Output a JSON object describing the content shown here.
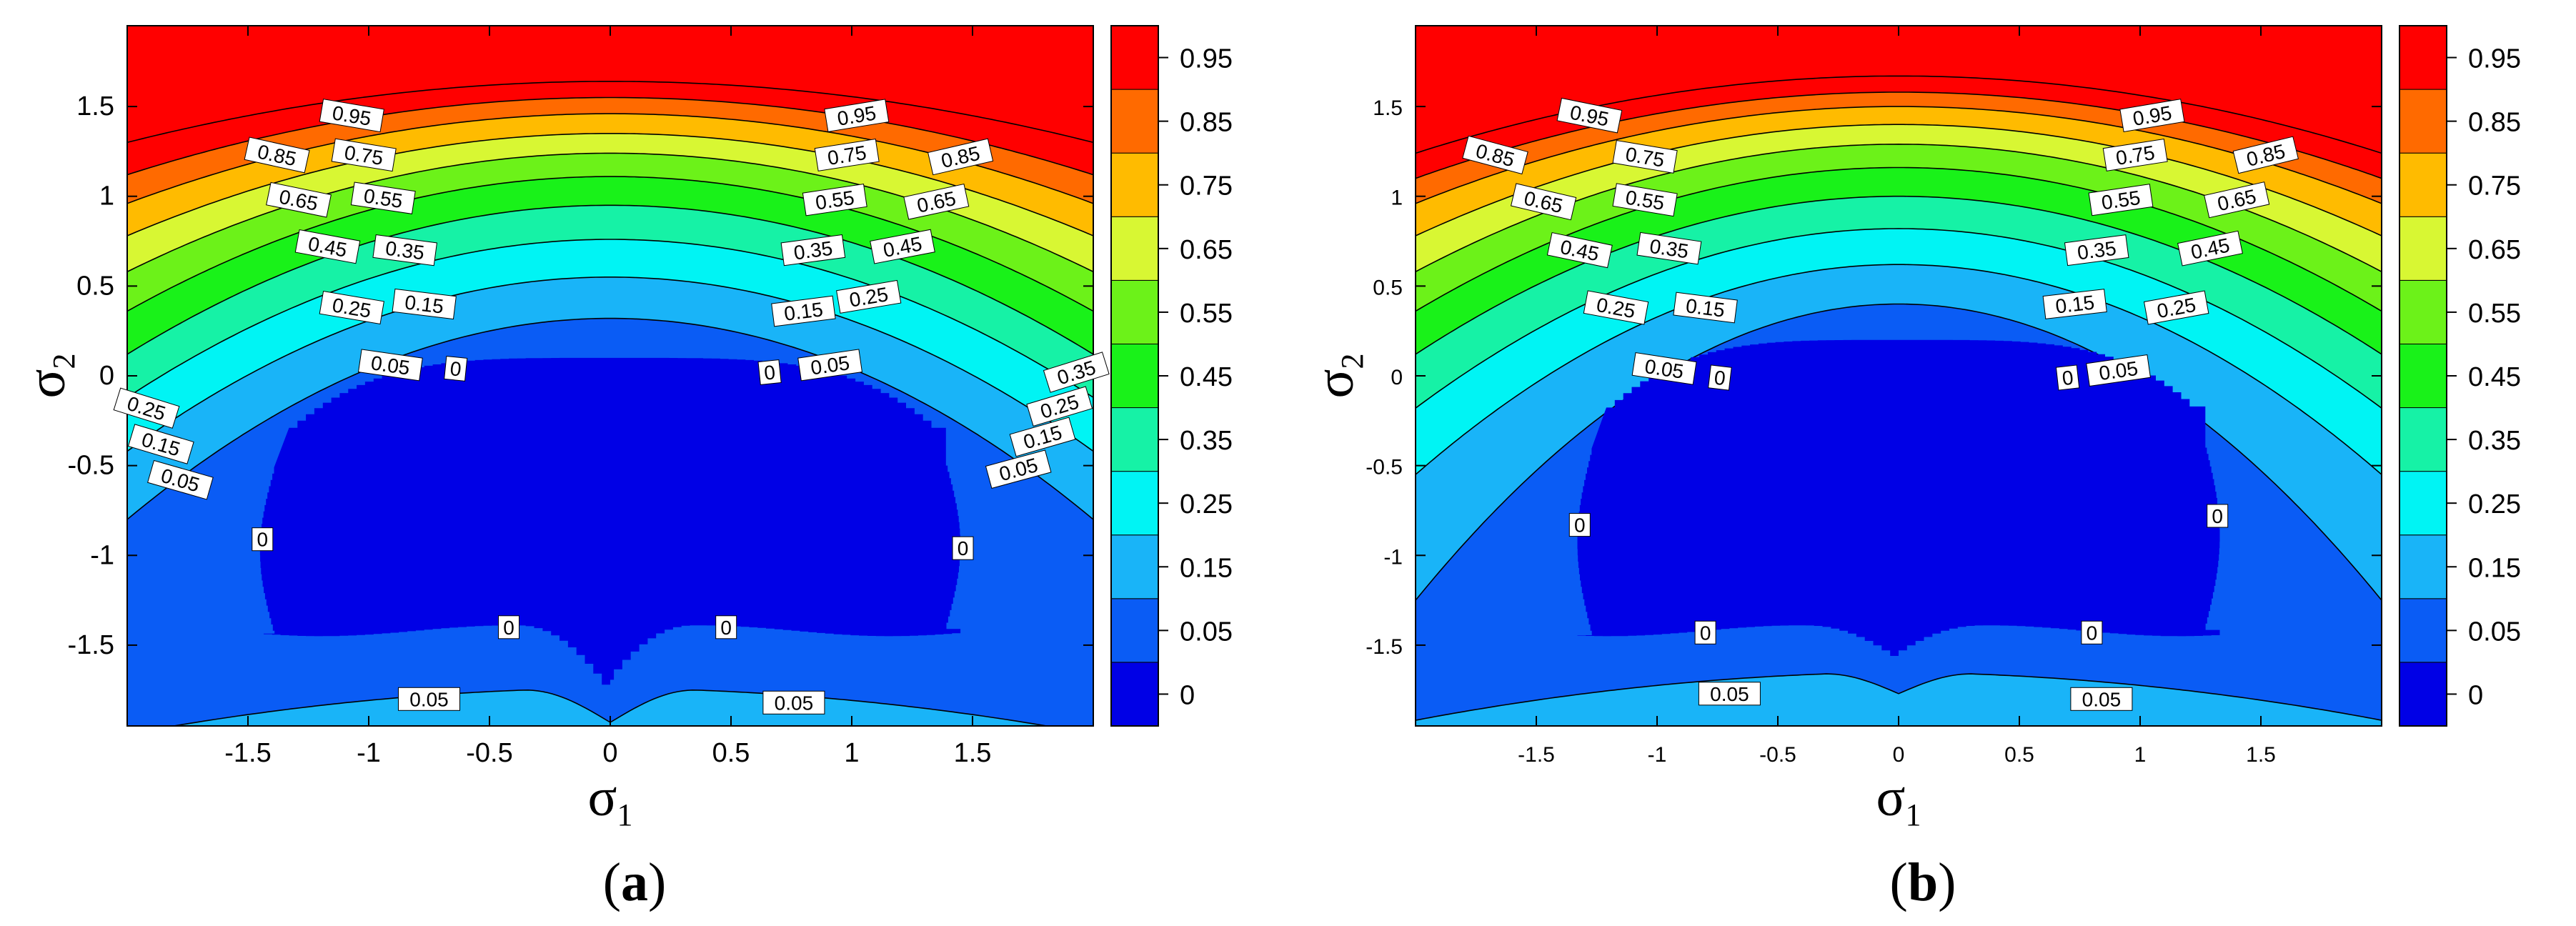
{
  "figure": {
    "panels": [
      {
        "id": "a",
        "caption_letter": "a"
      },
      {
        "id": "b",
        "caption_letter": "b"
      }
    ],
    "xlabel_symbol": "σ",
    "xlabel_sub": "1",
    "ylabel_symbol": "σ",
    "ylabel_sub": "2"
  },
  "chart_data": [
    {
      "type": "heatmap",
      "subtype": "filled-contour",
      "panel": "a",
      "xlabel": "σ1",
      "ylabel": "σ2",
      "xlim": [
        -2,
        2
      ],
      "ylim": [
        -1.95,
        1.95
      ],
      "x_ticks": [
        -1.5,
        -1,
        -0.5,
        0,
        0.5,
        1,
        1.5
      ],
      "x_tick_labels": [
        "-1.5",
        "-1",
        "-0.5",
        "0",
        "0.5",
        "1",
        "1.5"
      ],
      "y_ticks": [
        -1.5,
        -1,
        -0.5,
        0,
        0.5,
        1,
        1.5
      ],
      "y_tick_labels": [
        "-1.5",
        "-1",
        "-0.5",
        "0",
        "0.5",
        "1",
        "1.5"
      ],
      "colorbar": {
        "levels": [
          0,
          0.05,
          0.15,
          0.25,
          0.35,
          0.45,
          0.55,
          0.65,
          0.75,
          0.85,
          0.95
        ],
        "labels": [
          "0",
          "0.05",
          "0.15",
          "0.25",
          "0.35",
          "0.45",
          "0.55",
          "0.65",
          "0.75",
          "0.85",
          "0.95"
        ],
        "colors": [
          "#0000e6",
          "#0a5cf5",
          "#19b4f8",
          "#00f4f4",
          "#16f2a6",
          "#19f219",
          "#6cf219",
          "#d8f733",
          "#ffbb00",
          "#ff6a00",
          "#ff0000"
        ]
      },
      "contour_shape": {
        "boundaries": [
          {
            "level": 0.05,
            "center_y": 0.32,
            "edge_y": -0.8,
            "curvature": 2
          },
          {
            "level": 0.15,
            "center_y": 0.55,
            "edge_y": -0.42,
            "curvature": 2
          },
          {
            "level": 0.25,
            "center_y": 0.76,
            "edge_y": -0.12,
            "curvature": 2
          },
          {
            "level": 0.35,
            "center_y": 0.95,
            "edge_y": 0.12,
            "curvature": 2
          },
          {
            "level": 0.45,
            "center_y": 1.11,
            "edge_y": 0.36,
            "curvature": 2
          },
          {
            "level": 0.55,
            "center_y": 1.24,
            "edge_y": 0.58,
            "curvature": 2
          },
          {
            "level": 0.65,
            "center_y": 1.35,
            "edge_y": 0.78,
            "curvature": 2
          },
          {
            "level": 0.75,
            "center_y": 1.46,
            "edge_y": 0.96,
            "curvature": 2
          },
          {
            "level": 0.85,
            "center_y": 1.55,
            "edge_y": 1.12,
            "curvature": 2
          },
          {
            "level": 0.95,
            "center_y": 1.64,
            "edge_y": 1.3,
            "curvature": 2
          }
        ],
        "zero_region": {
          "x_left": -1.45,
          "x_right": 1.45,
          "y_top": 0.1,
          "y_bottom": -1.42,
          "notch_x": 0,
          "notch_y": -1.72
        },
        "bottom_band": {
          "level": 0.05,
          "peak_y": -1.75,
          "dip_y": -1.93,
          "peak_x": 0.35
        }
      },
      "contour_labels": [
        {
          "text": "0.95",
          "x": -1.07,
          "y": 1.45
        },
        {
          "text": "0.95",
          "x": 1.02,
          "y": 1.45
        },
        {
          "text": "0.85",
          "x": -1.38,
          "y": 1.23
        },
        {
          "text": "0.85",
          "x": 1.45,
          "y": 1.22
        },
        {
          "text": "0.75",
          "x": -1.02,
          "y": 1.23
        },
        {
          "text": "0.75",
          "x": 0.98,
          "y": 1.23
        },
        {
          "text": "0.65",
          "x": -1.29,
          "y": 0.98
        },
        {
          "text": "0.65",
          "x": 1.35,
          "y": 0.97
        },
        {
          "text": "0.55",
          "x": -0.94,
          "y": 0.99
        },
        {
          "text": "0.55",
          "x": 0.93,
          "y": 0.98
        },
        {
          "text": "0.45",
          "x": -1.17,
          "y": 0.72
        },
        {
          "text": "0.45",
          "x": 1.21,
          "y": 0.72
        },
        {
          "text": "0.35",
          "x": -0.85,
          "y": 0.7
        },
        {
          "text": "0.35",
          "x": 0.84,
          "y": 0.7
        },
        {
          "text": "0.25",
          "x": -1.07,
          "y": 0.38
        },
        {
          "text": "0.25",
          "x": 1.07,
          "y": 0.44
        },
        {
          "text": "0.15",
          "x": -0.77,
          "y": 0.4
        },
        {
          "text": "0.15",
          "x": 0.8,
          "y": 0.36
        },
        {
          "text": "0.05",
          "x": -0.91,
          "y": 0.06
        },
        {
          "text": "0.05",
          "x": 0.91,
          "y": 0.06
        },
        {
          "text": "0",
          "x": -0.64,
          "y": 0.04
        },
        {
          "text": "0",
          "x": 0.66,
          "y": 0.02
        },
        {
          "text": "0.35",
          "x": 1.93,
          "y": 0.02
        },
        {
          "text": "0.25",
          "x": 1.86,
          "y": -0.17
        },
        {
          "text": "0.15",
          "x": 1.79,
          "y": -0.34
        },
        {
          "text": "0.05",
          "x": 1.69,
          "y": -0.52
        },
        {
          "text": "0.25",
          "x": -1.92,
          "y": -0.18
        },
        {
          "text": "0.15",
          "x": -1.86,
          "y": -0.38
        },
        {
          "text": "0.05",
          "x": -1.78,
          "y": -0.58
        },
        {
          "text": "0",
          "x": -1.44,
          "y": -0.91
        },
        {
          "text": "0",
          "x": 1.46,
          "y": -0.96
        },
        {
          "text": "0",
          "x": -0.42,
          "y": -1.4
        },
        {
          "text": "0",
          "x": 0.48,
          "y": -1.4
        },
        {
          "text": "0.05",
          "x": -0.75,
          "y": -1.8
        },
        {
          "text": "0.05",
          "x": 0.76,
          "y": -1.82
        }
      ]
    },
    {
      "type": "heatmap",
      "subtype": "filled-contour",
      "panel": "b",
      "xlabel": "σ1",
      "ylabel": "σ2",
      "xlim": [
        -2,
        2
      ],
      "ylim": [
        -1.95,
        1.95
      ],
      "x_ticks": [
        -1.5,
        -1,
        -0.5,
        0,
        0.5,
        1,
        1.5
      ],
      "x_tick_labels": [
        "-1.5",
        "-1",
        "-0.5",
        "0",
        "0.5",
        "1",
        "1.5"
      ],
      "y_ticks": [
        -1.5,
        -1,
        -0.5,
        0,
        0.5,
        1,
        1.5
      ],
      "y_tick_labels": [
        "-1.5",
        "-1",
        "-0.5",
        "0",
        "0.5",
        "1",
        "1.5"
      ],
      "colorbar": {
        "levels": [
          0,
          0.05,
          0.15,
          0.25,
          0.35,
          0.45,
          0.55,
          0.65,
          0.75,
          0.85,
          0.95
        ],
        "labels": [
          "0",
          "0.05",
          "0.15",
          "0.25",
          "0.35",
          "0.45",
          "0.55",
          "0.65",
          "0.75",
          "0.85",
          "0.95"
        ],
        "colors": [
          "#0000e6",
          "#0a5cf5",
          "#19b4f8",
          "#00f4f4",
          "#16f2a6",
          "#19f219",
          "#6cf219",
          "#d8f733",
          "#ffbb00",
          "#ff6a00",
          "#ff0000"
        ]
      },
      "contour_shape": {
        "boundaries": [
          {
            "level": 0.05,
            "center_y": 0.4,
            "edge_y": -1.25,
            "curvature": 2
          },
          {
            "level": 0.15,
            "center_y": 0.62,
            "edge_y": -0.55,
            "curvature": 2
          },
          {
            "level": 0.25,
            "center_y": 0.82,
            "edge_y": -0.18,
            "curvature": 2
          },
          {
            "level": 0.35,
            "center_y": 1.0,
            "edge_y": 0.12,
            "curvature": 2
          },
          {
            "level": 0.45,
            "center_y": 1.16,
            "edge_y": 0.36,
            "curvature": 2
          },
          {
            "level": 0.55,
            "center_y": 1.29,
            "edge_y": 0.58,
            "curvature": 2
          },
          {
            "level": 0.65,
            "center_y": 1.4,
            "edge_y": 0.78,
            "curvature": 2
          },
          {
            "level": 0.75,
            "center_y": 1.5,
            "edge_y": 0.96,
            "curvature": 2
          },
          {
            "level": 0.85,
            "center_y": 1.58,
            "edge_y": 1.1,
            "curvature": 2
          },
          {
            "level": 0.95,
            "center_y": 1.67,
            "edge_y": 1.24,
            "curvature": 2
          }
        ],
        "zero_region": {
          "x_left": -1.33,
          "x_right": 1.33,
          "y_top": 0.2,
          "y_bottom": -1.42,
          "notch_x": 0,
          "notch_y": -1.56
        },
        "bottom_band": {
          "level": 0.05,
          "peak_y": -1.66,
          "dip_y": -1.77,
          "peak_x": 0.3
        }
      },
      "contour_labels": [
        {
          "text": "0.95",
          "x": -1.28,
          "y": 1.45
        },
        {
          "text": "0.95",
          "x": 1.05,
          "y": 1.45
        },
        {
          "text": "0.85",
          "x": -1.67,
          "y": 1.23
        },
        {
          "text": "0.85",
          "x": 1.52,
          "y": 1.23
        },
        {
          "text": "0.75",
          "x": -1.05,
          "y": 1.22
        },
        {
          "text": "0.75",
          "x": 0.98,
          "y": 1.23
        },
        {
          "text": "0.65",
          "x": -1.47,
          "y": 0.97
        },
        {
          "text": "0.65",
          "x": 1.4,
          "y": 0.98
        },
        {
          "text": "0.55",
          "x": -1.05,
          "y": 0.98
        },
        {
          "text": "0.55",
          "x": 0.92,
          "y": 0.98
        },
        {
          "text": "0.45",
          "x": -1.32,
          "y": 0.7
        },
        {
          "text": "0.45",
          "x": 1.29,
          "y": 0.71
        },
        {
          "text": "0.35",
          "x": -0.95,
          "y": 0.71
        },
        {
          "text": "0.35",
          "x": 0.82,
          "y": 0.7
        },
        {
          "text": "0.25",
          "x": -1.17,
          "y": 0.38
        },
        {
          "text": "0.25",
          "x": 1.15,
          "y": 0.38
        },
        {
          "text": "0.15",
          "x": -0.8,
          "y": 0.38
        },
        {
          "text": "0.15",
          "x": 0.73,
          "y": 0.4
        },
        {
          "text": "0.05",
          "x": -0.97,
          "y": 0.04
        },
        {
          "text": "0.05",
          "x": 0.91,
          "y": 0.03
        },
        {
          "text": "0",
          "x": -0.74,
          "y": -0.01
        },
        {
          "text": "0",
          "x": 0.7,
          "y": -0.01
        },
        {
          "text": "0",
          "x": -1.32,
          "y": -0.83
        },
        {
          "text": "0",
          "x": 1.32,
          "y": -0.78
        },
        {
          "text": "0",
          "x": -0.8,
          "y": -1.43
        },
        {
          "text": "0",
          "x": 0.8,
          "y": -1.43
        },
        {
          "text": "0.05",
          "x": -0.7,
          "y": -1.77
        },
        {
          "text": "0.05",
          "x": 0.84,
          "y": -1.8
        }
      ]
    }
  ]
}
